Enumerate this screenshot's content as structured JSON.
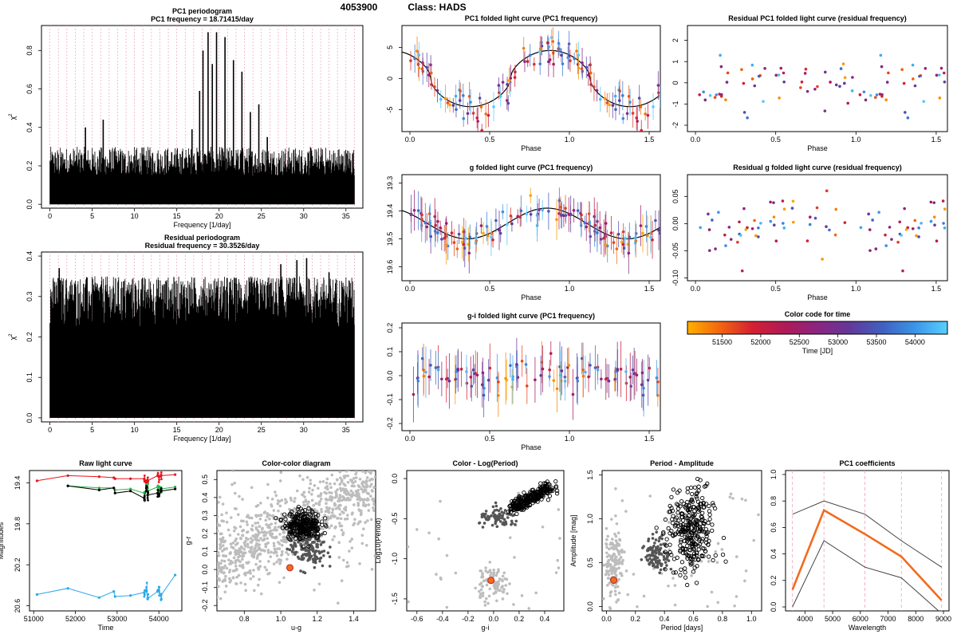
{
  "figure": {
    "id": "4053900",
    "class_label": "Class: HADS"
  },
  "chart_data": [
    {
      "type": "line",
      "panel": "pc1-periodogram",
      "title": "PC1 periodogram",
      "subtitle": "PC1 frequency = 18.71415/day",
      "xlabel": "Frequency [1/day]",
      "ylabel": "χ²",
      "xlim": [
        -1,
        37
      ],
      "ylim": [
        -0.02,
        0.93
      ],
      "xticks": [
        0,
        5,
        10,
        15,
        20,
        25,
        30,
        35
      ],
      "yticks": [
        0.0,
        0.2,
        0.4,
        0.6,
        0.8
      ],
      "peaks": [
        {
          "x": 16.8,
          "y": 0.39
        },
        {
          "x": 17.7,
          "y": 0.59
        },
        {
          "x": 18.1,
          "y": 0.8
        },
        {
          "x": 18.7,
          "y": 0.895
        },
        {
          "x": 19.2,
          "y": 0.73
        },
        {
          "x": 19.7,
          "y": 0.895
        },
        {
          "x": 20.7,
          "y": 0.87
        },
        {
          "x": 21.7,
          "y": 0.75
        },
        {
          "x": 22.7,
          "y": 0.69
        },
        {
          "x": 23.7,
          "y": 0.48
        },
        {
          "x": 24.7,
          "y": 0.52
        },
        {
          "x": 25.7,
          "y": 0.35
        },
        {
          "x": 6.3,
          "y": 0.44
        },
        {
          "x": 4.2,
          "y": 0.4
        }
      ],
      "noise_level": [
        0.15,
        0.3
      ]
    },
    {
      "type": "line",
      "panel": "residual-periodogram",
      "title": "Residual periodogram",
      "subtitle": "Residual frequency = 30.3526/day",
      "xlabel": "Frequency [1/day]",
      "ylabel": "χ²",
      "xlim": [
        -1,
        37
      ],
      "ylim": [
        -0.01,
        0.41
      ],
      "xticks": [
        0,
        5,
        10,
        15,
        20,
        25,
        30,
        35
      ],
      "yticks": [
        0.0,
        0.1,
        0.2,
        0.3,
        0.4
      ],
      "peaks": [
        {
          "x": 1.1,
          "y": 0.37
        },
        {
          "x": 27.3,
          "y": 0.38
        },
        {
          "x": 30.35,
          "y": 0.395
        },
        {
          "x": 29.2,
          "y": 0.39
        },
        {
          "x": 33.0,
          "y": 0.36
        }
      ],
      "noise_level": [
        0.22,
        0.35
      ]
    },
    {
      "type": "scatter",
      "panel": "pc1-folded",
      "title": "PC1 folded light curve (PC1 frequency)",
      "xlabel": "Phase",
      "ylabel": "",
      "xlim": [
        -0.05,
        1.57
      ],
      "ylim": [
        -8.5,
        8.5
      ],
      "xticks": [
        0.0,
        0.5,
        1.0,
        1.5
      ],
      "yticks": [
        -5,
        0,
        5
      ],
      "model": {
        "mean": 0,
        "amplitude": 4.5,
        "phase_of_max": 0.88,
        "shape": "flat-top"
      },
      "scatter_sd": 1.8,
      "errbar": 1.6
    },
    {
      "type": "scatter",
      "panel": "residual-pc1-folded",
      "title": "Residual PC1 folded light curve (residual frequency)",
      "xlabel": "Phase",
      "ylabel": "",
      "xlim": [
        -0.05,
        1.57
      ],
      "ylim": [
        -2.3,
        2.7
      ],
      "xticks": [
        0.0,
        0.5,
        1.0,
        1.5
      ],
      "yticks": [
        -2,
        -1,
        0,
        1,
        2
      ],
      "scatter_sd": 0.9
    },
    {
      "type": "scatter",
      "panel": "g-folded",
      "title": "g folded light curve (PC1 frequency)",
      "xlabel": "Phase",
      "ylabel": "",
      "xlim": [
        -0.05,
        1.57
      ],
      "ylim": [
        19.65,
        19.27
      ],
      "xticks": [
        0.0,
        0.5,
        1.0,
        1.5
      ],
      "yticks": [
        19.3,
        19.4,
        19.5,
        19.6
      ],
      "model": {
        "mean": 19.445,
        "amplitude": 0.055,
        "phase_of_max": 0.36
      },
      "scatter_sd": 0.035,
      "errbar": 0.05
    },
    {
      "type": "scatter",
      "panel": "residual-g-folded",
      "title": "Residual g folded light curve (residual frequency)",
      "xlabel": "Phase",
      "ylabel": "",
      "xlim": [
        -0.05,
        1.57
      ],
      "ylim": [
        -0.105,
        0.09
      ],
      "xticks": [
        0.0,
        0.5,
        1.0,
        1.5
      ],
      "yticks": [
        -0.1,
        -0.05,
        0.0,
        0.05
      ],
      "scatter_sd": 0.033
    },
    {
      "type": "scatter",
      "panel": "gi-folded",
      "title": "g-i folded light curve (PC1 frequency)",
      "xlabel": "Phase",
      "ylabel": "",
      "xlim": [
        -0.05,
        1.57
      ],
      "ylim": [
        -0.23,
        0.22
      ],
      "xticks": [
        0.0,
        0.5,
        1.0,
        1.5
      ],
      "yticks": [
        -0.2,
        -0.1,
        0.0,
        0.1,
        0.2
      ],
      "scatter_sd": 0.055,
      "errbar": 0.08
    },
    {
      "type": "heatmap",
      "panel": "color-code",
      "title": "Color code for time",
      "xlabel": "Time [JD]",
      "xlim": [
        51050,
        54420
      ],
      "xticks": [
        51500,
        52000,
        52500,
        53000,
        53500,
        54000
      ],
      "stops": [
        "#FFB000",
        "#F26510",
        "#D42034",
        "#AE1A58",
        "#8A2580",
        "#63389A",
        "#4060C0",
        "#3A95E8",
        "#5ACFFF"
      ]
    },
    {
      "type": "line",
      "panel": "raw-light-curve",
      "title": "Raw light curve",
      "xlabel": "Time",
      "ylabel": "Magnitudes",
      "xlim": [
        50900,
        54550
      ],
      "ylim": [
        20.65,
        19.28
      ],
      "xticks": [
        51000,
        52000,
        53000,
        54000
      ],
      "yticks": [
        19.4,
        19.8,
        20.2,
        20.6
      ],
      "series": [
        {
          "color": "#E8141C",
          "epochs": [
            51080,
            51820,
            52570,
            52920,
            52950,
            53320,
            53650,
            53700,
            53730,
            53970,
            54000,
            54050,
            54390
          ],
          "values": [
            19.38,
            19.33,
            19.34,
            19.35,
            19.36,
            19.36,
            19.36,
            19.4,
            19.38,
            19.33,
            19.34,
            19.33,
            19.32
          ]
        },
        {
          "color": "#2DB34A",
          "epochs": [
            51820,
            52570,
            52920,
            52950,
            53320,
            53650,
            53700,
            53730,
            53970,
            54000,
            54050,
            54390
          ],
          "values": [
            19.43,
            19.45,
            19.45,
            19.47,
            19.46,
            19.5,
            19.45,
            19.48,
            19.44,
            19.48,
            19.46,
            19.44
          ]
        },
        {
          "color": "#000000",
          "epochs": [
            51820,
            52570,
            52920,
            52950,
            53320,
            53650,
            53700,
            53730,
            53970,
            54000,
            54050,
            54390
          ],
          "values": [
            19.43,
            19.47,
            19.45,
            19.5,
            19.48,
            19.55,
            19.45,
            19.52,
            19.5,
            19.53,
            19.48,
            19.46
          ]
        },
        {
          "color": "#2DA8E8",
          "epochs": [
            51080,
            51820,
            52570,
            52920,
            52950,
            53320,
            53650,
            53700,
            53730,
            53970,
            54000,
            54050,
            54390
          ],
          "values": [
            20.49,
            20.43,
            20.52,
            20.46,
            20.51,
            20.5,
            20.47,
            20.45,
            20.53,
            20.46,
            20.45,
            20.5,
            20.3
          ]
        }
      ]
    },
    {
      "type": "scatter",
      "panel": "color-color",
      "title": "Color-color diagram",
      "xlabel": "u-g",
      "ylabel": "g-r",
      "xlim": [
        0.65,
        1.52
      ],
      "ylim": [
        -0.23,
        0.55
      ],
      "xticks": [
        0.8,
        1.0,
        1.2,
        1.4
      ],
      "yticks": [
        -0.2,
        -0.1,
        0.0,
        0.1,
        0.2,
        0.3,
        0.4,
        0.5
      ],
      "target": {
        "x": 1.05,
        "y": 0.01
      },
      "clusters": {
        "bg": {
          "cx": 1.0,
          "cy": 0.25,
          "sx": 0.2,
          "sy": 0.14,
          "corr": 0.8
        },
        "dark": {
          "cx": 1.15,
          "cy": 0.12,
          "sx": 0.05,
          "sy": 0.06
        },
        "open": {
          "cx": 1.12,
          "cy": 0.25,
          "sx": 0.05,
          "sy": 0.04
        }
      }
    },
    {
      "type": "scatter",
      "panel": "color-logperiod",
      "title": "Color - Log(Period)",
      "xlabel": "g-i",
      "ylabel": "Log10(Period)",
      "xlim": [
        -0.68,
        0.55
      ],
      "ylim": [
        -1.65,
        0.1
      ],
      "xticks": [
        -0.6,
        -0.4,
        -0.2,
        0.0,
        0.2,
        0.4
      ],
      "yticks": [
        -1.5,
        -1.0,
        -0.5,
        0.0
      ],
      "target": {
        "x": -0.02,
        "y": -1.27
      },
      "clusters": {
        "open": {
          "cx": 0.28,
          "cy": -0.25,
          "sx": 0.07,
          "sy": 0.08
        },
        "dark": {
          "cx": 0.05,
          "cy": -0.5,
          "sx": 0.08,
          "sy": 0.06
        },
        "bg": {
          "cx": 0.0,
          "cy": -1.3,
          "sx": 0.06,
          "sy": 0.1
        }
      }
    },
    {
      "type": "scatter",
      "panel": "period-amplitude",
      "title": "Period - Amplitude",
      "xlabel": "Period [days]",
      "ylabel": "Amplitude [mag]",
      "xlim": [
        -0.03,
        1.07
      ],
      "ylim": [
        -0.05,
        1.55
      ],
      "xticks": [
        0.0,
        0.2,
        0.4,
        0.6,
        0.8,
        1.0
      ],
      "yticks": [
        0.0,
        0.5,
        1.0,
        1.5
      ],
      "target": {
        "x": 0.05,
        "y": 0.3
      },
      "clusters": {
        "bg": {
          "cx": 0.05,
          "cy": 0.5,
          "sx": 0.03,
          "sy": 0.2
        },
        "dark": {
          "cx": 0.35,
          "cy": 0.6,
          "sx": 0.04,
          "sy": 0.1
        },
        "open": {
          "cx": 0.58,
          "cy": 0.85,
          "sx": 0.08,
          "sy": 0.25
        }
      }
    },
    {
      "type": "line",
      "panel": "pc1-coefficients",
      "title": "PC1 coefficients",
      "xlabel": "Wavelength",
      "ylabel": "",
      "xlim": [
        3300,
        9200
      ],
      "ylim": [
        -0.03,
        1.03
      ],
      "xticks": [
        4000,
        5000,
        6000,
        7000,
        8000,
        9000
      ],
      "yticks": [
        0.0,
        0.2,
        0.4,
        0.6,
        0.8,
        1.0
      ],
      "x": [
        3551,
        4686,
        6166,
        7480,
        8932
      ],
      "series": [
        {
          "values": [
            0.7,
            0.8,
            0.7,
            0.5,
            0.3
          ],
          "color": "#444444"
        },
        {
          "values": [
            0.13,
            0.73,
            0.55,
            0.38,
            0.05
          ],
          "color": "#F26B1F"
        },
        {
          "values": [
            0.0,
            0.5,
            0.3,
            0.22,
            -0.05
          ],
          "color": "#444444"
        }
      ],
      "vlines": [
        3551,
        4686,
        6166,
        7480,
        8932
      ]
    }
  ]
}
